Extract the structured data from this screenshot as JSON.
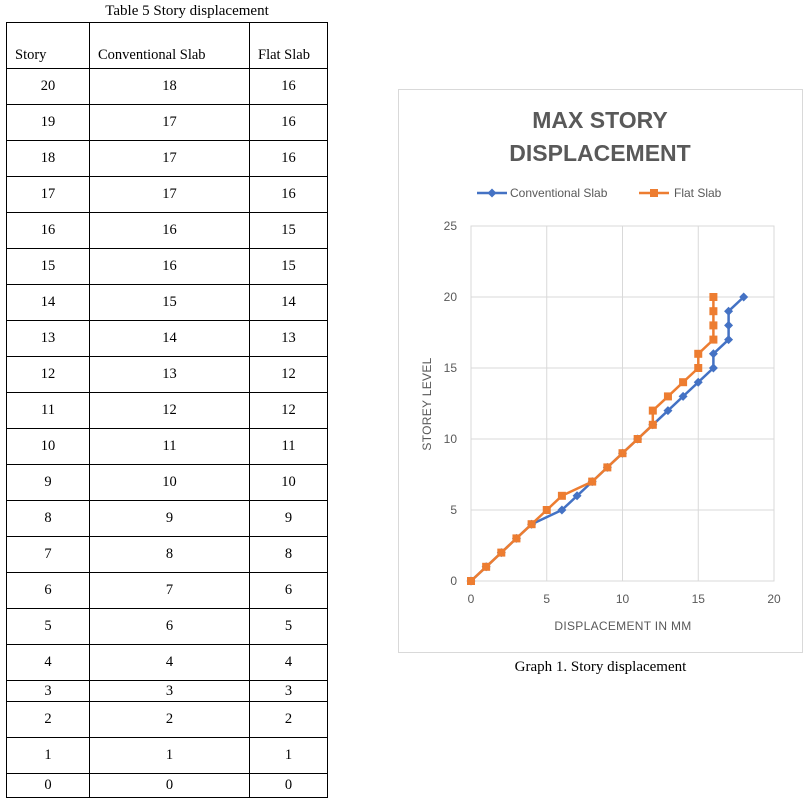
{
  "table": {
    "caption": "Table 5 Story displacement",
    "headers": [
      "Story",
      "Conventional Slab",
      "Flat Slab"
    ],
    "rows": [
      [
        "20",
        "18",
        "16"
      ],
      [
        "19",
        "17",
        "16"
      ],
      [
        "18",
        "17",
        "16"
      ],
      [
        "17",
        "17",
        "16"
      ],
      [
        "16",
        "16",
        "15"
      ],
      [
        "15",
        "16",
        "15"
      ],
      [
        "14",
        "15",
        "14"
      ],
      [
        "13",
        "14",
        "13"
      ],
      [
        "12",
        "13",
        "12"
      ],
      [
        "11",
        "12",
        "12"
      ],
      [
        "10",
        "11",
        "11"
      ],
      [
        "9",
        "10",
        "10"
      ],
      [
        "8",
        "9",
        "9"
      ],
      [
        "7",
        "8",
        "8"
      ],
      [
        "6",
        "7",
        "6"
      ],
      [
        "5",
        "6",
        "5"
      ],
      [
        "4",
        "4",
        "4"
      ],
      [
        "3",
        "3",
        "3"
      ],
      [
        "2",
        "2",
        "2"
      ],
      [
        "1",
        "1",
        "1"
      ],
      [
        "0",
        "0",
        "0"
      ]
    ]
  },
  "graph_caption": "Graph 1. Story displacement",
  "chart_data": {
    "type": "line",
    "title": "MAX STORY DISPLACEMENT",
    "xlabel": "DISPLACEMENT IN MM",
    "ylabel": "STOREY LEVEL",
    "xlim": [
      0,
      20
    ],
    "ylim": [
      0,
      25
    ],
    "xticks": [
      0,
      5,
      10,
      15,
      20
    ],
    "yticks": [
      0,
      5,
      10,
      15,
      20,
      25
    ],
    "grid": true,
    "legend": "top",
    "series": [
      {
        "name": "Conventional Slab",
        "color": "#4472c4",
        "marker": "diamond",
        "points": [
          [
            0,
            0
          ],
          [
            1,
            1
          ],
          [
            2,
            2
          ],
          [
            3,
            3
          ],
          [
            4,
            4
          ],
          [
            6,
            5
          ],
          [
            7,
            6
          ],
          [
            8,
            7
          ],
          [
            9,
            8
          ],
          [
            10,
            9
          ],
          [
            11,
            10
          ],
          [
            12,
            11
          ],
          [
            13,
            12
          ],
          [
            14,
            13
          ],
          [
            15,
            14
          ],
          [
            16,
            15
          ],
          [
            16,
            16
          ],
          [
            17,
            17
          ],
          [
            17,
            18
          ],
          [
            17,
            19
          ],
          [
            18,
            20
          ]
        ]
      },
      {
        "name": "Flat Slab",
        "color": "#ed7d31",
        "marker": "square",
        "points": [
          [
            0,
            0
          ],
          [
            1,
            1
          ],
          [
            2,
            2
          ],
          [
            3,
            3
          ],
          [
            4,
            4
          ],
          [
            5,
            5
          ],
          [
            6,
            6
          ],
          [
            8,
            7
          ],
          [
            9,
            8
          ],
          [
            10,
            9
          ],
          [
            11,
            10
          ],
          [
            12,
            11
          ],
          [
            12,
            12
          ],
          [
            13,
            13
          ],
          [
            14,
            14
          ],
          [
            15,
            15
          ],
          [
            15,
            16
          ],
          [
            16,
            17
          ],
          [
            16,
            18
          ],
          [
            16,
            19
          ],
          [
            16,
            20
          ]
        ]
      }
    ]
  }
}
